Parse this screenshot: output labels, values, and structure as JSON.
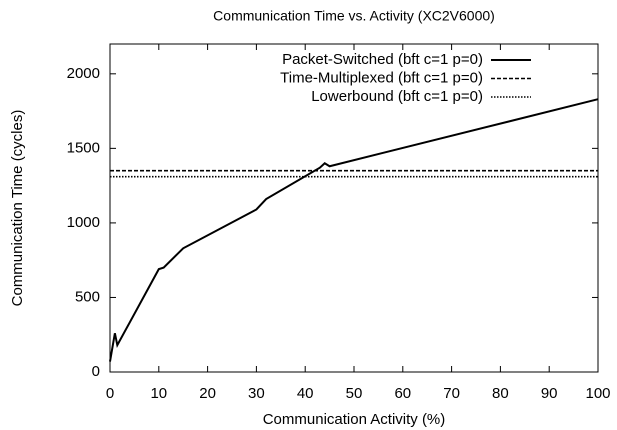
{
  "chart_data": {
    "type": "line",
    "title": "Communication Time vs. Activity (XC2V6000)",
    "x_label": "Communication Activity (%)",
    "y_label": "Communication Time (cycles)",
    "xlim": [
      0,
      100
    ],
    "xticks": [
      0,
      10,
      20,
      30,
      40,
      50,
      60,
      70,
      80,
      90,
      100
    ],
    "ylim": [
      0,
      2200
    ],
    "yticks": [
      0,
      500,
      1000,
      1500,
      2000
    ],
    "legend": "top-right",
    "series": [
      {
        "name": "Packet-Switched (bft c=1 p=0)",
        "color": "#000000",
        "dash": "solid",
        "x": [
          0,
          1,
          1.5,
          10,
          11,
          15,
          30,
          32,
          43,
          44,
          45,
          100
        ],
        "values": [
          70,
          260,
          180,
          690,
          700,
          830,
          1090,
          1160,
          1370,
          1400,
          1380,
          1830
        ]
      },
      {
        "name": "Time-Multiplexed (bft c=1 p=0)",
        "color": "#000000",
        "dash": "dashed",
        "x": [
          0,
          100
        ],
        "values": [
          1350,
          1350
        ]
      },
      {
        "name": "Lowerbound (bft c=1 p=0)",
        "color": "#000000",
        "dash": "dotted",
        "x": [
          0,
          100
        ],
        "values": [
          1310,
          1310
        ]
      }
    ]
  }
}
